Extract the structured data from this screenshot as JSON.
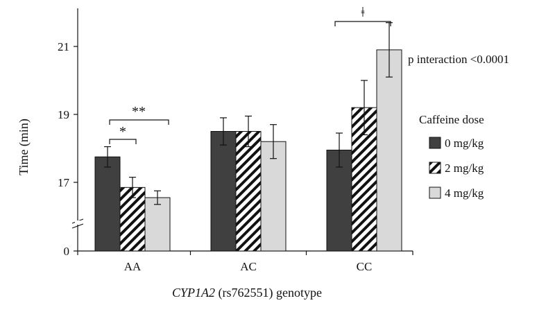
{
  "chart_data": {
    "type": "bar",
    "xlabel_italic": "CYP1A2",
    "xlabel_rest": " (rs762551) genotype",
    "ylabel": "Time (min)",
    "y_tick_labels": [
      "0",
      "17",
      "19",
      "21"
    ],
    "y_axis_break": true,
    "ylim": [
      16,
      22
    ],
    "categories": [
      "AA",
      "AC",
      "CC"
    ],
    "legend_title": "Caffeine dose",
    "legend_position": "right",
    "series": [
      {
        "name": "0 mg/kg",
        "values": [
          17.75,
          18.5,
          17.95
        ],
        "errors": [
          0.3,
          0.4,
          0.5
        ],
        "color": "#404040",
        "pattern": "solid"
      },
      {
        "name": "2 mg/kg",
        "values": [
          16.85,
          18.5,
          19.2
        ],
        "errors": [
          0.3,
          0.45,
          0.8
        ],
        "color": "#ffffff",
        "pattern": "hatch"
      },
      {
        "name": "4 mg/kg",
        "values": [
          16.55,
          18.2,
          20.9
        ],
        "errors": [
          0.2,
          0.5,
          0.8
        ],
        "color": "#d9d9d9",
        "pattern": "solid"
      }
    ],
    "annotations": {
      "interaction": "p interaction <0.0001",
      "sig_single": "*",
      "sig_double": "**",
      "sig_dagger": "ǂ"
    }
  }
}
